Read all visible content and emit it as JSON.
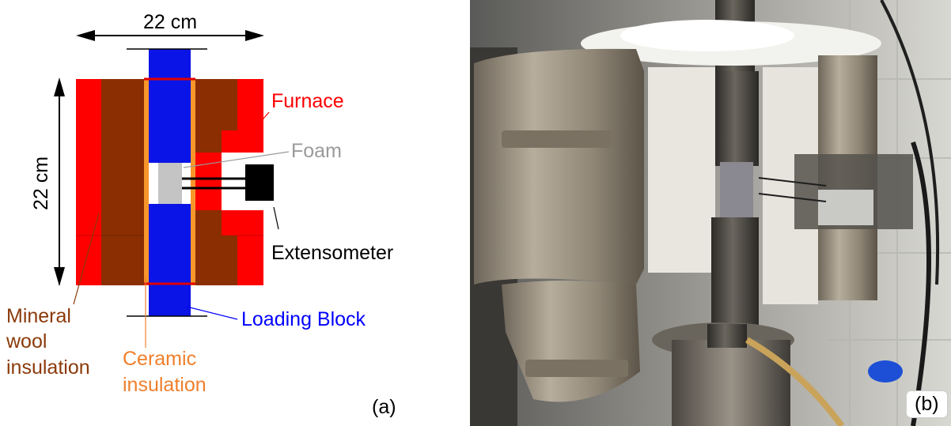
{
  "panel_a": {
    "width_dim": "22 cm",
    "height_dim": "22 cm",
    "labels": {
      "furnace": "Furnace",
      "foam": "Foam",
      "extensometer": "Extensometer",
      "loading_block": "Loading Block",
      "mineral_wool_1": "Mineral",
      "mineral_wool_2": "wool",
      "mineral_wool_3": "insulation",
      "ceramic_1": "Ceramic",
      "ceramic_2": "insulation"
    },
    "tag": "(a)",
    "colors": {
      "furnace": "#ff0000",
      "mineral_wool": "#8b2e02",
      "ceramic": "#f7962a",
      "loading_block": "#0a14e6",
      "foam": "#c4c4c4",
      "label_furnace": "#ff0000",
      "label_foam": "#9a9a9a",
      "label_loading": "#0000ff",
      "label_mineral": "#8b3a0a",
      "label_ceramic": "#f07f2a"
    }
  },
  "panel_b": {
    "tag": "(b)"
  }
}
